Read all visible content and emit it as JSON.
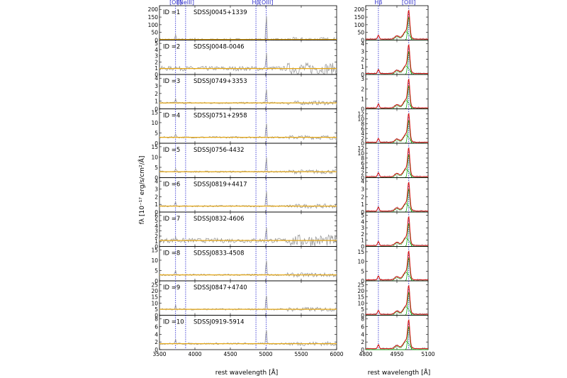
{
  "figure": {
    "y_axis_label": "fλ [10⁻¹⁷ erg/s/cm²/Å]",
    "x_axis_label": "rest wavelength [Å]",
    "x_axis_label_right": "rest wavelength [Å]"
  },
  "line_markers": {
    "left": [
      {
        "label": "[OII]",
        "wavelength": 3727
      },
      {
        "label": "[NeIII]",
        "wavelength": 3869
      },
      {
        "label": "Hβ",
        "wavelength": 4861
      },
      {
        "label": "[OIII]",
        "wavelength": 5007
      }
    ],
    "right": [
      {
        "label": "Hβ",
        "wavelength": 4861
      },
      {
        "label": "[OIII]",
        "wavelength": 5007
      }
    ]
  },
  "colors": {
    "spectrum": "#9a9a9a",
    "continuum": "#e6a817",
    "marker": "#1a1acc",
    "fit_total": "#dd1111",
    "fit_component": "#11aa11",
    "label_blue": "#3333cc"
  },
  "chart_data": [
    {
      "type": "line",
      "panel": "left",
      "xlim": [
        3500,
        6000
      ],
      "x_ticks": [
        3500,
        4000,
        4500,
        5000,
        5500,
        6000
      ],
      "panels": [
        {
          "id_label": "ID =1",
          "object": "SDSSJ0045+1339",
          "y_ticks": [
            0,
            50,
            100,
            150,
            200
          ],
          "ylim": [
            0,
            215
          ]
        },
        {
          "id_label": "ID =2",
          "object": "SDSSJ0048-0046",
          "y_ticks": [
            0,
            1,
            2,
            3,
            4,
            5
          ],
          "ylim": [
            0,
            5.3
          ]
        },
        {
          "id_label": "ID =3",
          "object": "SDSSJ0749+3353",
          "y_ticks": [
            0,
            1,
            2,
            3,
            4
          ],
          "ylim": [
            0,
            4.3
          ]
        },
        {
          "id_label": "ID =4",
          "object": "SDSSJ0751+2958",
          "y_ticks": [
            0,
            5,
            10,
            15
          ],
          "ylim": [
            0,
            16
          ]
        },
        {
          "id_label": "ID =5",
          "object": "SDSSJ0756-4432",
          "y_ticks": [
            0,
            5,
            10,
            15
          ],
          "ylim": [
            0,
            16
          ]
        },
        {
          "id_label": "ID =6",
          "object": "SDSSJ0819+4417",
          "y_ticks": [
            0,
            1,
            2,
            3,
            4
          ],
          "ylim": [
            0,
            4.3
          ]
        },
        {
          "id_label": "ID =7",
          "object": "SDSSJ0832-4606",
          "y_ticks": [
            0,
            1,
            2,
            3,
            4,
            5,
            6
          ],
          "ylim": [
            0,
            6.4
          ]
        },
        {
          "id_label": "ID =8",
          "object": "SDSSJ0833-4508",
          "y_ticks": [
            0,
            5,
            10,
            15
          ],
          "ylim": [
            0,
            16
          ]
        },
        {
          "id_label": "ID =9",
          "object": "SDSSJ0847+4740",
          "y_ticks": [
            0,
            5,
            10,
            15,
            20,
            25
          ],
          "ylim": [
            0,
            27
          ]
        },
        {
          "id_label": "ID =10",
          "object": "SDSSJ0919-5914",
          "y_ticks": [
            0,
            2,
            4,
            6,
            8
          ],
          "ylim": [
            0,
            8.6
          ]
        }
      ]
    },
    {
      "type": "line",
      "panel": "right",
      "xlim": [
        4800,
        5100
      ],
      "x_ticks": [
        4800,
        4950,
        5100
      ],
      "panels": [
        {
          "y_ticks": [
            0,
            50,
            100,
            150,
            200
          ],
          "ylim": [
            0,
            215
          ]
        },
        {
          "y_ticks": [
            0,
            1,
            2,
            3,
            4
          ],
          "ylim": [
            0,
            4.3
          ]
        },
        {
          "y_ticks": [
            0,
            1,
            2,
            3
          ],
          "ylim": [
            0,
            3.3
          ]
        },
        {
          "y_ticks": [
            0,
            2,
            4,
            6,
            8,
            10,
            12
          ],
          "ylim": [
            0,
            13.5
          ]
        },
        {
          "y_ticks": [
            0,
            2,
            4,
            6,
            8,
            10,
            12
          ],
          "ylim": [
            0,
            13.5
          ]
        },
        {
          "y_ticks": [
            0,
            1,
            2,
            3,
            4
          ],
          "ylim": [
            0,
            4.3
          ]
        },
        {
          "y_ticks": [
            0,
            1,
            2,
            3,
            4,
            5
          ],
          "ylim": [
            0,
            5.3
          ]
        },
        {
          "y_ticks": [
            0,
            5,
            10,
            15
          ],
          "ylim": [
            0,
            17
          ]
        },
        {
          "y_ticks": [
            0,
            5,
            10,
            15,
            20,
            25
          ],
          "ylim": [
            0,
            27
          ]
        },
        {
          "y_ticks": [
            0,
            2,
            4,
            6,
            8
          ],
          "ylim": [
            0,
            8.6
          ]
        }
      ]
    }
  ]
}
